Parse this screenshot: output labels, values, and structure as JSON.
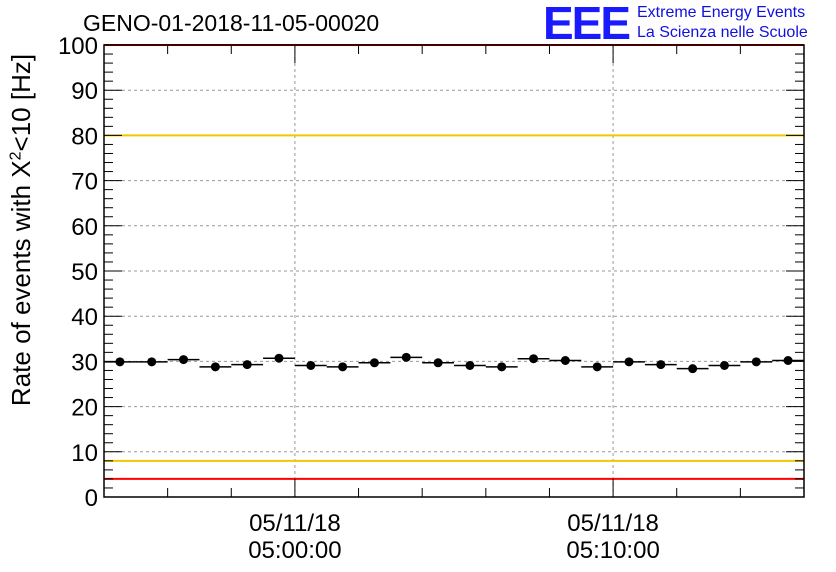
{
  "header": {
    "title": "GENO-01-2018-11-05-00020",
    "logo_mark": "EEE",
    "logo_line1": "Extreme Energy Events",
    "logo_line2": "La Scienza nelle Scuole"
  },
  "chart_data": {
    "type": "scatter",
    "title": "GENO-01-2018-11-05-00020",
    "ylabel_prefix": "Rate of events with X",
    "ylabel_sup": "2",
    "ylabel_suffix": "<10 [Hz]",
    "ylim": [
      0,
      100
    ],
    "yticks": [
      0,
      10,
      20,
      30,
      40,
      50,
      60,
      70,
      80,
      90,
      100
    ],
    "xlim_minutes": [
      -6,
      16
    ],
    "xticks": [
      {
        "minute": 0,
        "date": "05/11/18",
        "time": "05:00:00"
      },
      {
        "minute": 10,
        "date": "05/11/18",
        "time": "05:10:00"
      }
    ],
    "grid": true,
    "reference_lines": [
      {
        "value": 100,
        "color": "#ff0000"
      },
      {
        "value": 80,
        "color": "#f0c800"
      },
      {
        "value": 8,
        "color": "#f0c800"
      },
      {
        "value": 4,
        "color": "#ff0000"
      }
    ],
    "bin_width_minutes": 1,
    "x": [
      -5.5,
      -4.5,
      -3.5,
      -2.5,
      -1.5,
      -0.5,
      0.5,
      1.5,
      2.5,
      3.5,
      4.5,
      5.5,
      6.5,
      7.5,
      8.5,
      9.5,
      10.5,
      11.5,
      12.5,
      13.5,
      14.5,
      15.5
    ],
    "values": [
      29.9,
      29.9,
      30.4,
      28.8,
      29.3,
      30.7,
      29.1,
      28.8,
      29.7,
      30.9,
      29.7,
      29.1,
      28.8,
      30.6,
      30.2,
      28.8,
      29.9,
      29.3,
      28.4,
      29.1,
      29.9,
      30.2
    ]
  }
}
